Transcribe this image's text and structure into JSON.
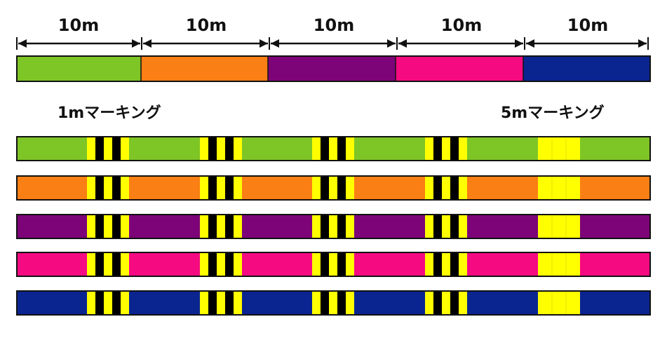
{
  "segment_labels": [
    "10m",
    "10m",
    "10m",
    "10m",
    "10m"
  ],
  "marking_labels": {
    "one_meter": "1mマーキング",
    "five_meter": "5mマーキング"
  },
  "colors": {
    "green": "#7ec526",
    "orange": "#fa7f14",
    "purple": "#7d0478",
    "pink": "#f50a82",
    "navy": "#0a2590",
    "marker_yellow": "#ffff00",
    "marker_black": "#000000"
  },
  "top_bar_colors": [
    "green",
    "orange",
    "purple",
    "pink",
    "navy"
  ],
  "marked_line_colors": [
    "green",
    "orange",
    "purple",
    "pink",
    "navy"
  ],
  "marks_per_line": 5,
  "mark_types": [
    "1m",
    "1m",
    "1m",
    "1m",
    "5m"
  ]
}
